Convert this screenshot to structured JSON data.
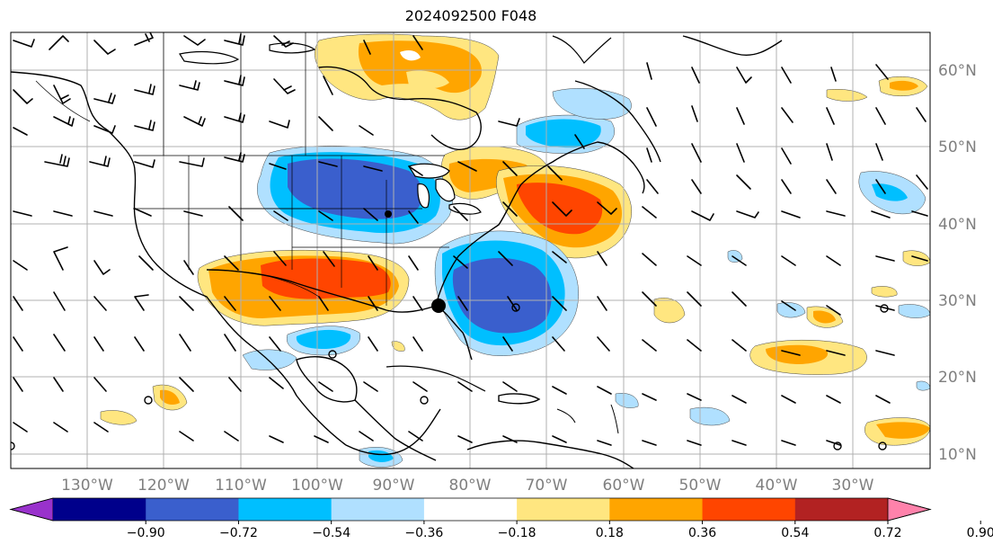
{
  "title": "2024092500 F048",
  "lat_labels": [
    "60°N",
    "50°N",
    "40°N",
    "30°N",
    "20°N",
    "10°N"
  ],
  "lon_labels": [
    "130°W",
    "120°W",
    "110°W",
    "100°W",
    "90°W",
    "80°W",
    "70°W",
    "60°W",
    "50°W",
    "40°W",
    "30°W"
  ],
  "colorbar": {
    "ticks": [
      "−0.90",
      "−0.72",
      "−0.54",
      "−0.36",
      "−0.18",
      "0.18",
      "0.36",
      "0.54",
      "0.72",
      "0.90"
    ],
    "colors": [
      "#9932cc",
      "#00008b",
      "#3a5fcd",
      "#00bfff",
      "#b0e0ff",
      "#ffffff",
      "#ffe680",
      "#ffa500",
      "#ff4500",
      "#b22222",
      "#ff82ab"
    ]
  },
  "colors": {
    "coast": "#000000",
    "grid": "#b0b0b0",
    "barb": "#000000",
    "label": "#7f7f7f"
  },
  "features": {
    "storm_marker": "filled-circle",
    "wind_barbs": "barb-icon"
  }
}
